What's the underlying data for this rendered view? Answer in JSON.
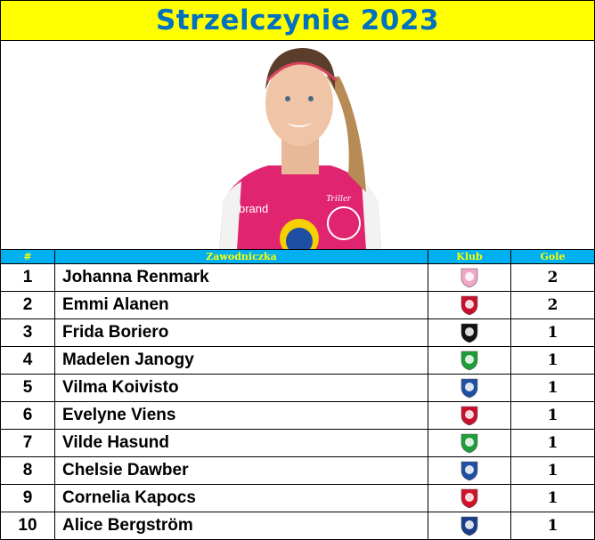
{
  "title": "Strzelczynie 2023",
  "table": {
    "headers": [
      "#",
      "Zawodniczka",
      "Klub",
      "Gole"
    ],
    "rows": [
      {
        "rank": "1",
        "name": "Johanna Renmark",
        "club_icon": "linkoping-crest",
        "club_color": "#f2a6c8",
        "goals": "2"
      },
      {
        "rank": "2",
        "name": "Emmi Alanen",
        "club_icon": "kalmar-crest",
        "club_color": "#c8102e",
        "goals": "2"
      },
      {
        "rank": "3",
        "name": "Frida Boriero",
        "club_icon": "brommapojkarna-crest",
        "club_color": "#111111",
        "goals": "1"
      },
      {
        "rank": "4",
        "name": "Madelen Janogy",
        "club_icon": "hammarby-crest",
        "club_color": "#1f9d3a",
        "goals": "1"
      },
      {
        "rank": "5",
        "name": "Vilma Koivisto",
        "club_icon": "ifk-norrkoping-crest",
        "club_color": "#1f4fa3",
        "goals": "1"
      },
      {
        "rank": "6",
        "name": "Evelyne Viens",
        "club_icon": "kalmar-crest",
        "club_color": "#c8102e",
        "goals": "1"
      },
      {
        "rank": "7",
        "name": "Vilde Hasund",
        "club_icon": "hammarby-crest",
        "club_color": "#1f9d3a",
        "goals": "1"
      },
      {
        "rank": "8",
        "name": "Chelsie Dawber",
        "club_icon": "ifk-norrkoping-crest",
        "club_color": "#1f4fa3",
        "goals": "1"
      },
      {
        "rank": "9",
        "name": "Cornelia Kapocs",
        "club_icon": "vaxjo-crest",
        "club_color": "#d0122b",
        "goals": "1"
      },
      {
        "rank": "10",
        "name": "Alice Bergström",
        "club_icon": "djurgarden-crest",
        "club_color": "#1b3e8a",
        "goals": "1"
      }
    ]
  }
}
